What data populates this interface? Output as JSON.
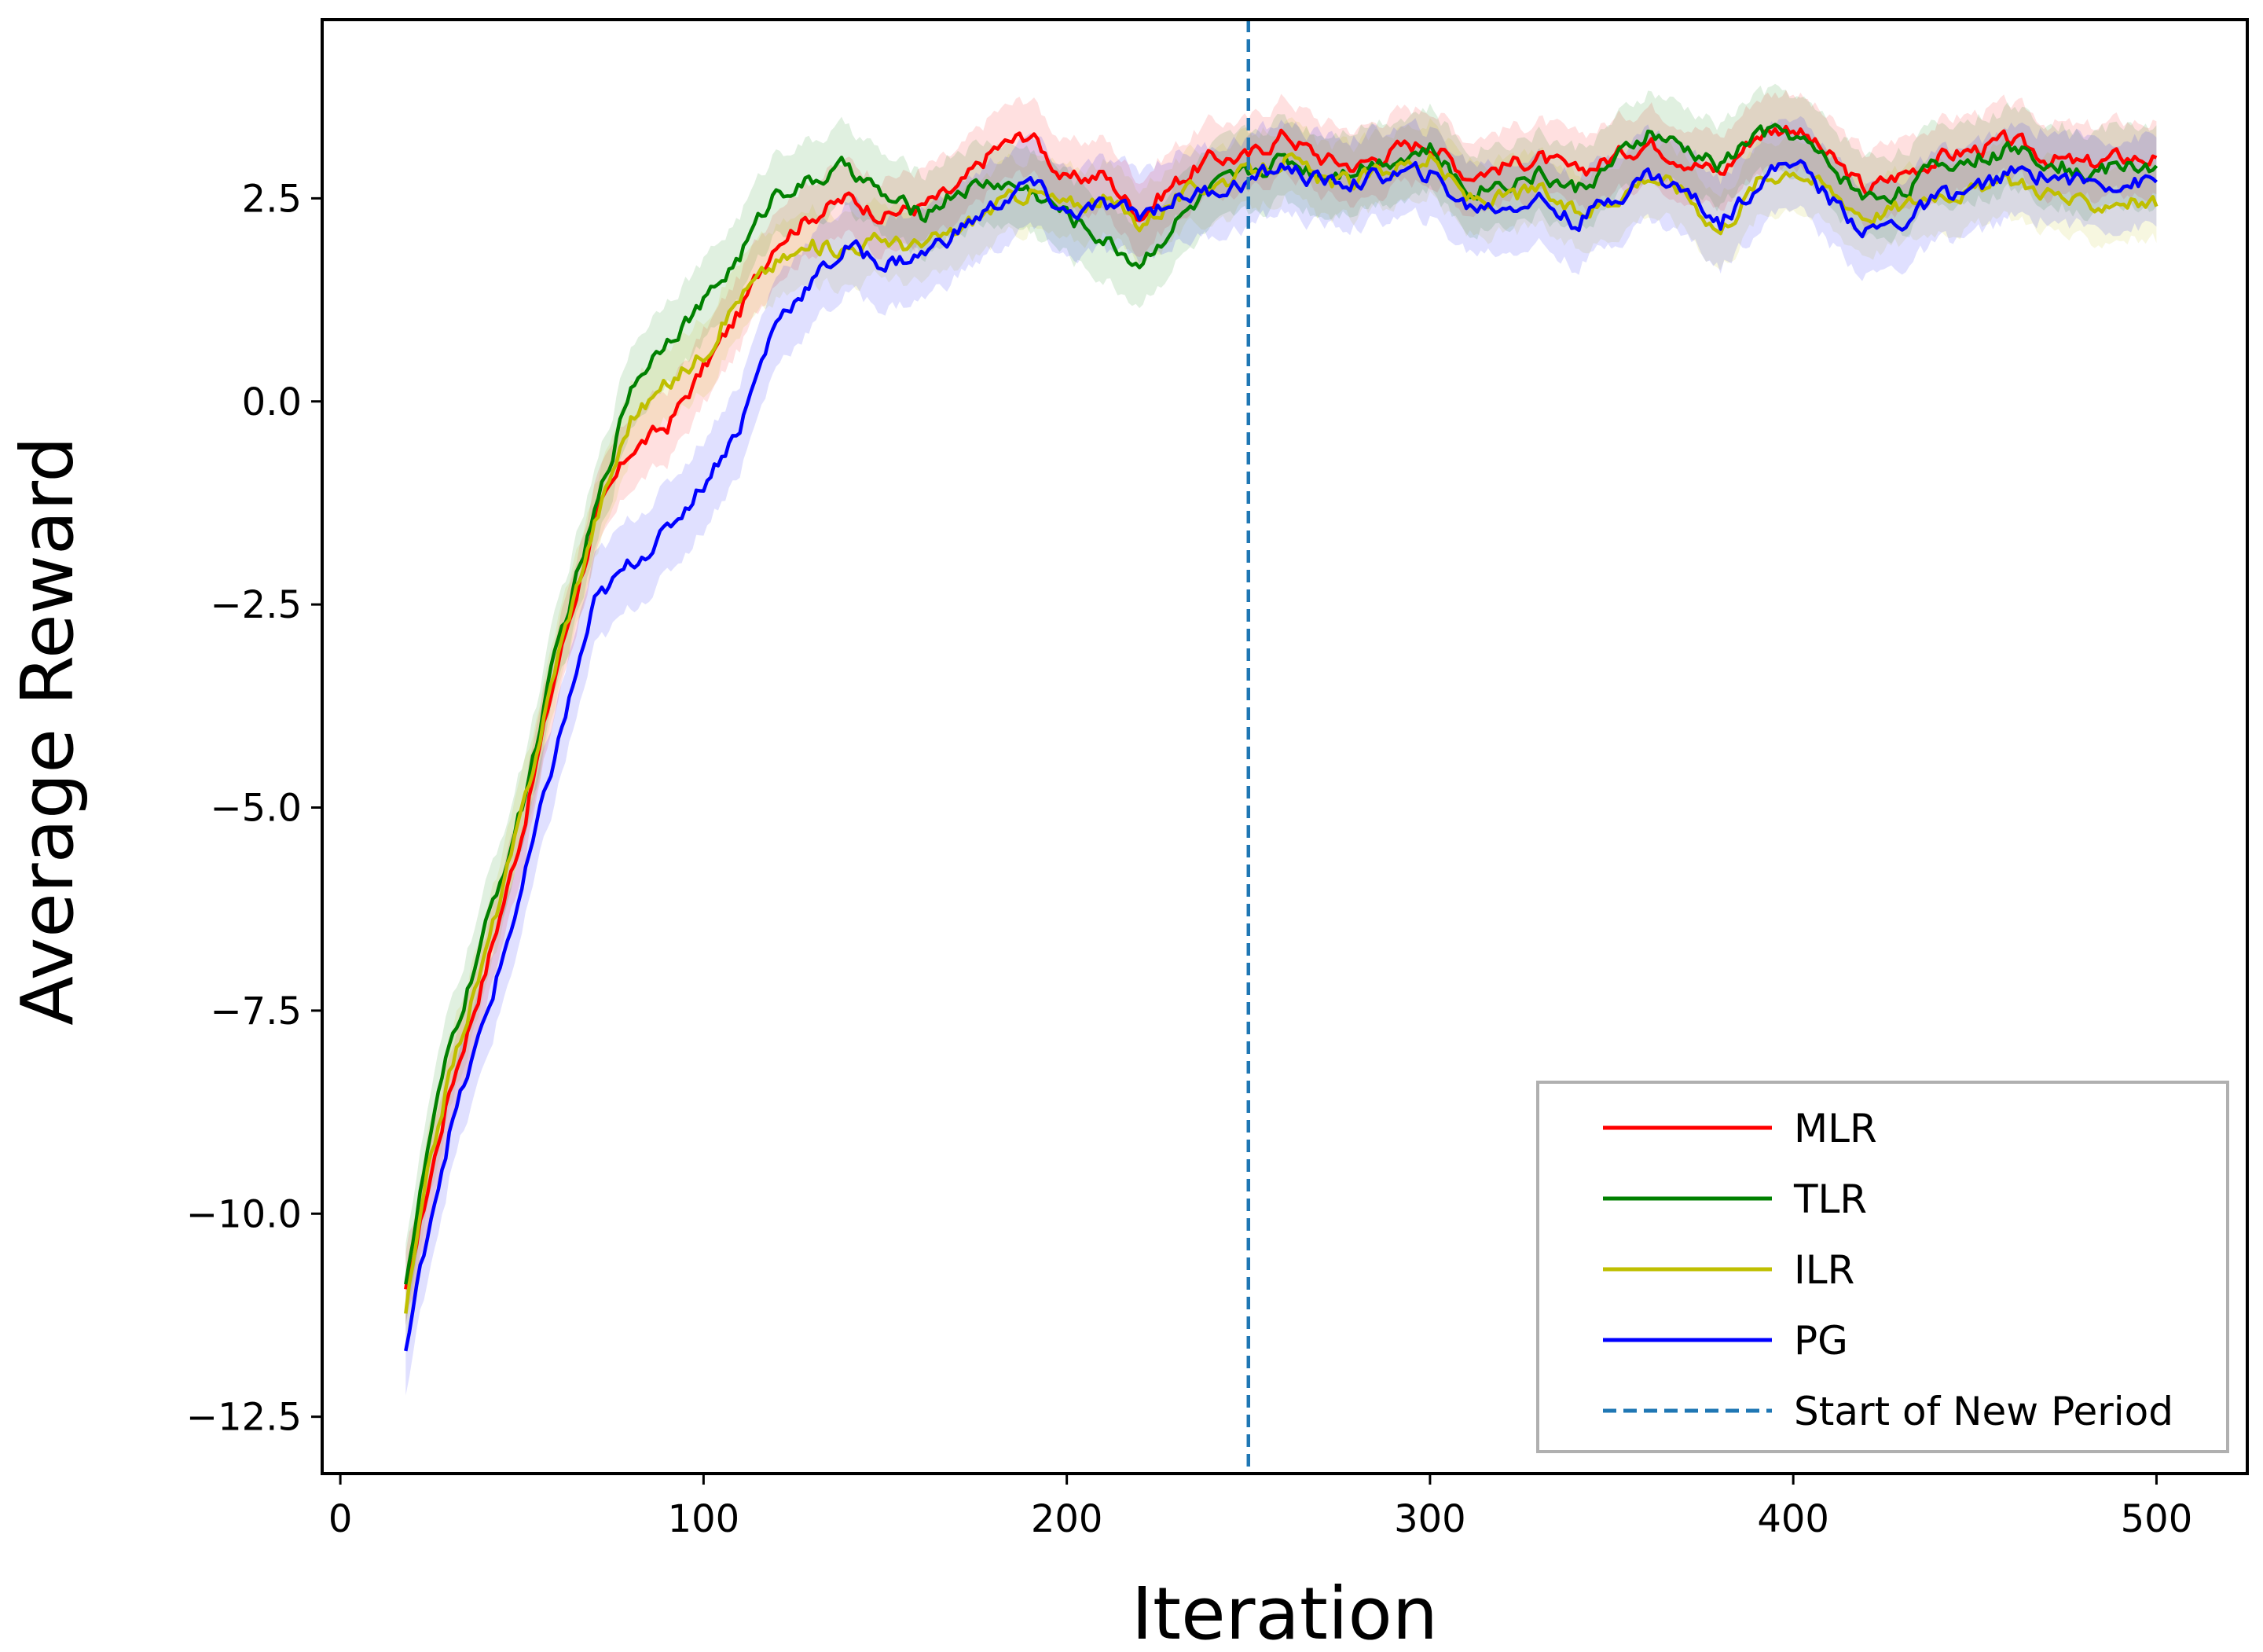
{
  "chart_data": {
    "type": "line",
    "title": "",
    "xlabel": "Iteration",
    "ylabel": "Average Reward",
    "xlim": [
      -5,
      525
    ],
    "ylim": [
      -13.2,
      4.7
    ],
    "xticks": [
      0,
      100,
      200,
      300,
      400,
      500
    ],
    "xtick_labels": [
      "0",
      "100",
      "200",
      "300",
      "400",
      "500"
    ],
    "yticks": [
      -12.5,
      -10.0,
      -7.5,
      -5.0,
      -2.5,
      0.0,
      2.5
    ],
    "ytick_labels": [
      "−12.5",
      "−10.0",
      "−7.5",
      "−5.0",
      "−2.5",
      "0.0",
      "2.5"
    ],
    "grid": false,
    "legend_position": "lower right",
    "series": [
      {
        "name": "MLR",
        "color": "#ff0000",
        "x": [
          18,
          25,
          30,
          40,
          50,
          60,
          70,
          80,
          90,
          100,
          110,
          120,
          130,
          140,
          150,
          160,
          170,
          180,
          190,
          200,
          210,
          220,
          230,
          240,
          250,
          260,
          270,
          280,
          290,
          300,
          310,
          320,
          330,
          340,
          350,
          360,
          370,
          380,
          390,
          400,
          410,
          420,
          430,
          440,
          450,
          460,
          470,
          480,
          490,
          500
        ],
        "y": [
          -11.0,
          -9.5,
          -8.5,
          -7.0,
          -5.3,
          -3.2,
          -1.5,
          -0.6,
          -0.3,
          0.4,
          1.1,
          2.0,
          2.3,
          2.5,
          2.3,
          2.4,
          2.6,
          3.1,
          3.3,
          2.7,
          2.8,
          2.3,
          2.7,
          3.0,
          3.0,
          3.3,
          3.0,
          2.9,
          3.1,
          3.2,
          2.8,
          2.9,
          3.0,
          2.8,
          3.0,
          3.2,
          3.0,
          2.8,
          3.3,
          3.4,
          3.0,
          2.6,
          2.8,
          3.0,
          3.1,
          3.2,
          3.0,
          2.9,
          3.0,
          3.0
        ],
        "band": 0.45
      },
      {
        "name": "TLR",
        "color": "#008000",
        "x": [
          18,
          25,
          30,
          40,
          50,
          60,
          70,
          80,
          90,
          100,
          110,
          120,
          130,
          140,
          150,
          160,
          170,
          180,
          190,
          200,
          210,
          220,
          230,
          240,
          250,
          260,
          270,
          280,
          290,
          300,
          310,
          320,
          330,
          340,
          350,
          360,
          370,
          380,
          390,
          400,
          410,
          420,
          430,
          440,
          450,
          460,
          470,
          480,
          490,
          500
        ],
        "y": [
          -10.8,
          -9.0,
          -8.0,
          -6.5,
          -5.0,
          -3.0,
          -1.4,
          0.2,
          0.8,
          1.2,
          1.8,
          2.6,
          2.7,
          2.9,
          2.5,
          2.3,
          2.6,
          2.7,
          2.6,
          2.3,
          2.0,
          1.7,
          2.2,
          2.6,
          2.8,
          3.0,
          2.8,
          2.9,
          3.0,
          3.1,
          2.6,
          2.7,
          2.8,
          2.6,
          2.9,
          3.3,
          3.1,
          2.9,
          3.3,
          3.3,
          2.9,
          2.5,
          2.6,
          2.9,
          3.0,
          3.1,
          3.0,
          2.8,
          2.9,
          2.9
        ],
        "band": 0.5
      },
      {
        "name": "ILR",
        "color": "#bfbf00",
        "x": [
          18,
          25,
          30,
          40,
          50,
          60,
          70,
          80,
          90,
          100,
          110,
          120,
          130,
          140,
          150,
          160,
          170,
          180,
          190,
          200,
          210,
          220,
          230,
          240,
          250,
          260,
          270,
          280,
          290,
          300,
          310,
          320,
          330,
          340,
          350,
          360,
          370,
          380,
          390,
          400,
          410,
          420,
          430,
          440,
          450,
          460,
          470,
          480,
          490,
          500
        ],
        "y": [
          -11.2,
          -9.3,
          -8.3,
          -6.8,
          -5.1,
          -3.1,
          -1.5,
          -0.2,
          0.2,
          0.6,
          1.3,
          1.7,
          1.9,
          1.9,
          2.0,
          1.9,
          2.1,
          2.4,
          2.6,
          2.4,
          2.5,
          2.2,
          2.5,
          2.7,
          2.8,
          3.0,
          2.7,
          2.7,
          2.9,
          3.0,
          2.5,
          2.5,
          2.6,
          2.3,
          2.5,
          2.8,
          2.6,
          2.1,
          2.7,
          2.9,
          2.6,
          2.3,
          2.4,
          2.6,
          2.6,
          2.7,
          2.6,
          2.4,
          2.5,
          2.4
        ],
        "band": 0.45
      },
      {
        "name": "PG",
        "color": "#0000ff",
        "x": [
          18,
          25,
          30,
          40,
          50,
          60,
          70,
          80,
          90,
          100,
          110,
          120,
          130,
          140,
          150,
          160,
          170,
          180,
          190,
          200,
          210,
          220,
          230,
          240,
          250,
          260,
          270,
          280,
          290,
          300,
          310,
          320,
          330,
          340,
          350,
          360,
          370,
          380,
          390,
          400,
          410,
          420,
          430,
          440,
          450,
          460,
          470,
          480,
          490,
          500
        ],
        "y": [
          -11.7,
          -10.0,
          -9.0,
          -7.6,
          -6.0,
          -4.2,
          -2.5,
          -2.0,
          -1.6,
          -1.0,
          -0.3,
          1.0,
          1.5,
          1.9,
          1.7,
          1.8,
          2.1,
          2.4,
          2.7,
          2.3,
          2.4,
          2.3,
          2.5,
          2.6,
          2.7,
          2.9,
          2.7,
          2.7,
          2.8,
          2.8,
          2.4,
          2.4,
          2.5,
          2.2,
          2.5,
          2.8,
          2.6,
          2.2,
          2.7,
          3.0,
          2.5,
          2.1,
          2.2,
          2.5,
          2.6,
          2.8,
          2.8,
          2.7,
          2.7,
          2.7
        ],
        "band": 0.55
      }
    ],
    "vline": {
      "name": "Start of New Period",
      "x": 250,
      "color": "#1f77b4",
      "style": "dashed"
    }
  }
}
